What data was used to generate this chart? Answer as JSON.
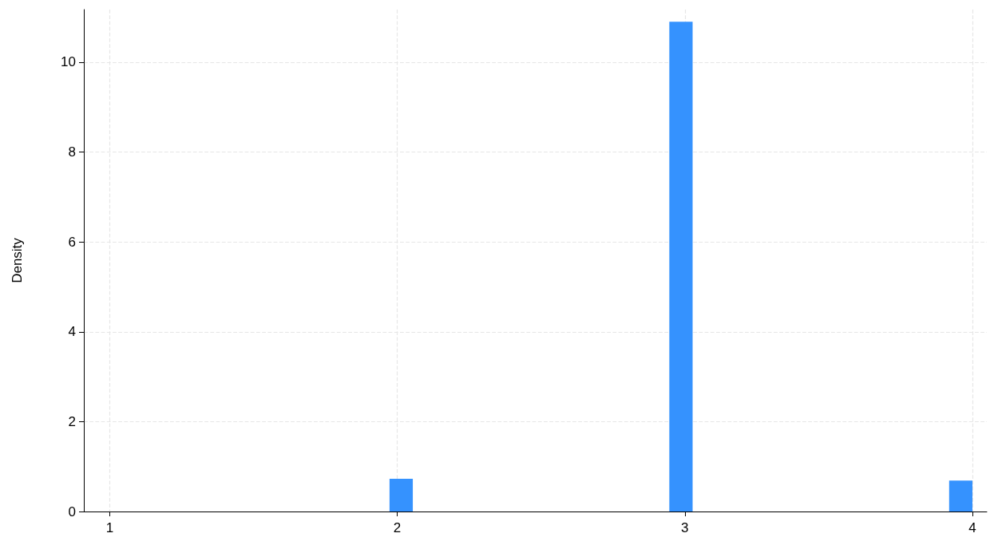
{
  "chart_data": {
    "type": "histogram",
    "ylabel": "Density",
    "color": "#3592fe",
    "bins": [
      1,
      1.081,
      1.162,
      1.243,
      1.324,
      1.405,
      1.486,
      1.568,
      1.649,
      1.73,
      1.811,
      1.892,
      1.973,
      2.054,
      2.135,
      2.216,
      2.297,
      2.378,
      2.459,
      2.541,
      2.622,
      2.703,
      2.784,
      2.865,
      2.946,
      3.027,
      3.108,
      3.189,
      3.27,
      3.351,
      3.432,
      3.514,
      3.595,
      3.676,
      3.757,
      3.838,
      3.919,
      4
    ],
    "values": [
      0,
      0,
      0,
      0,
      0,
      0,
      0,
      0,
      0,
      0,
      0,
      0,
      0.73,
      0,
      0,
      0,
      0,
      0,
      0,
      0,
      0,
      0,
      0,
      0,
      10.9,
      0,
      0,
      0,
      0,
      0,
      0,
      0,
      0,
      0,
      0,
      0,
      0.69
    ],
    "xlim": [
      0.91,
      4.05
    ],
    "xticks": [
      1,
      2,
      3,
      4
    ],
    "ylim": [
      0,
      11.17
    ],
    "yticks": [
      0,
      2,
      4,
      6,
      8,
      10
    ],
    "grid": true,
    "line_style": "dashed"
  }
}
